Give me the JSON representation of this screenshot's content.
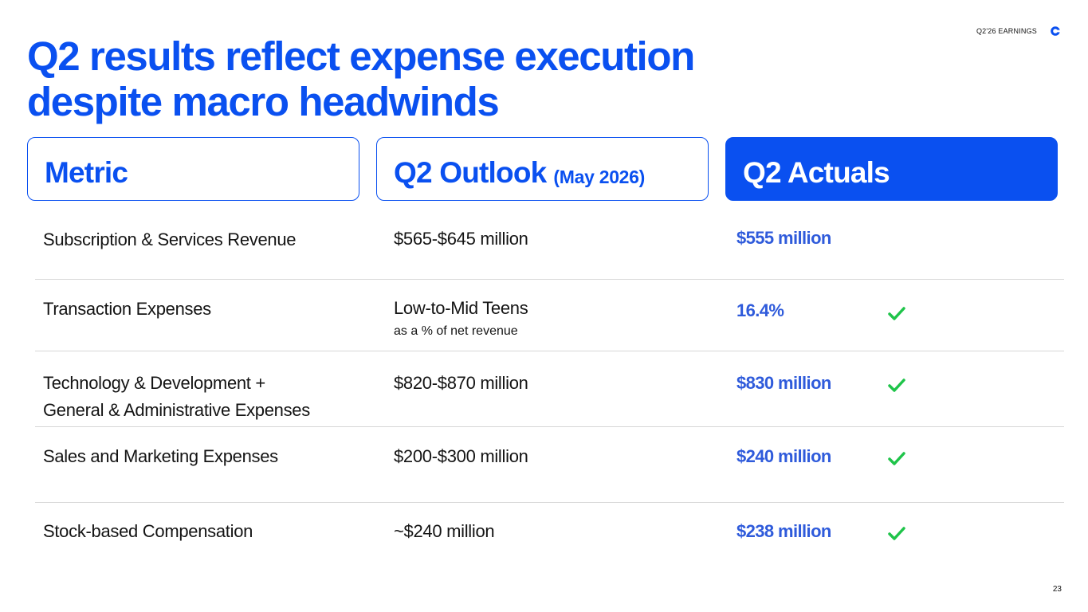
{
  "header": {
    "tag": "Q2'26 EARNINGS",
    "logo_icon": "brand-c-logo-icon"
  },
  "title": {
    "line1": "Q2 results reflect expense execution",
    "line2": "despite macro headwinds"
  },
  "columns": {
    "metric": "Metric",
    "outlook": "Q2 Outlook",
    "outlook_note": "(May 2026)",
    "actuals": "Q2 Actuals"
  },
  "rows": [
    {
      "metric": "Subscription & Services Revenue",
      "outlook": "$565-$645 million",
      "outlook_sub": "",
      "actual": "$555 million",
      "check": false
    },
    {
      "metric": "Transaction Expenses",
      "outlook": "Low-to-Mid Teens",
      "outlook_sub": "as a % of net revenue",
      "actual": "16.4%",
      "check": true
    },
    {
      "metric": "Technology & Development + General & Administrative Expenses",
      "metric_line1": "Technology & Development +",
      "metric_line2": "General & Administrative Expenses",
      "outlook": "$820-$870 million",
      "outlook_sub": "",
      "actual": "$830 million",
      "check": true
    },
    {
      "metric": "Sales and Marketing Expenses",
      "outlook": "$200-$300 million",
      "outlook_sub": "",
      "actual": "$240 million",
      "check": true
    },
    {
      "metric": "Stock-based Compensation",
      "outlook": "~$240 million",
      "outlook_sub": "",
      "actual": "$238 million",
      "check": true
    }
  ],
  "colors": {
    "accent": "#0a50f0",
    "actual_text": "#2f5bdb",
    "check": "#1fc44a"
  },
  "page_number": "23"
}
